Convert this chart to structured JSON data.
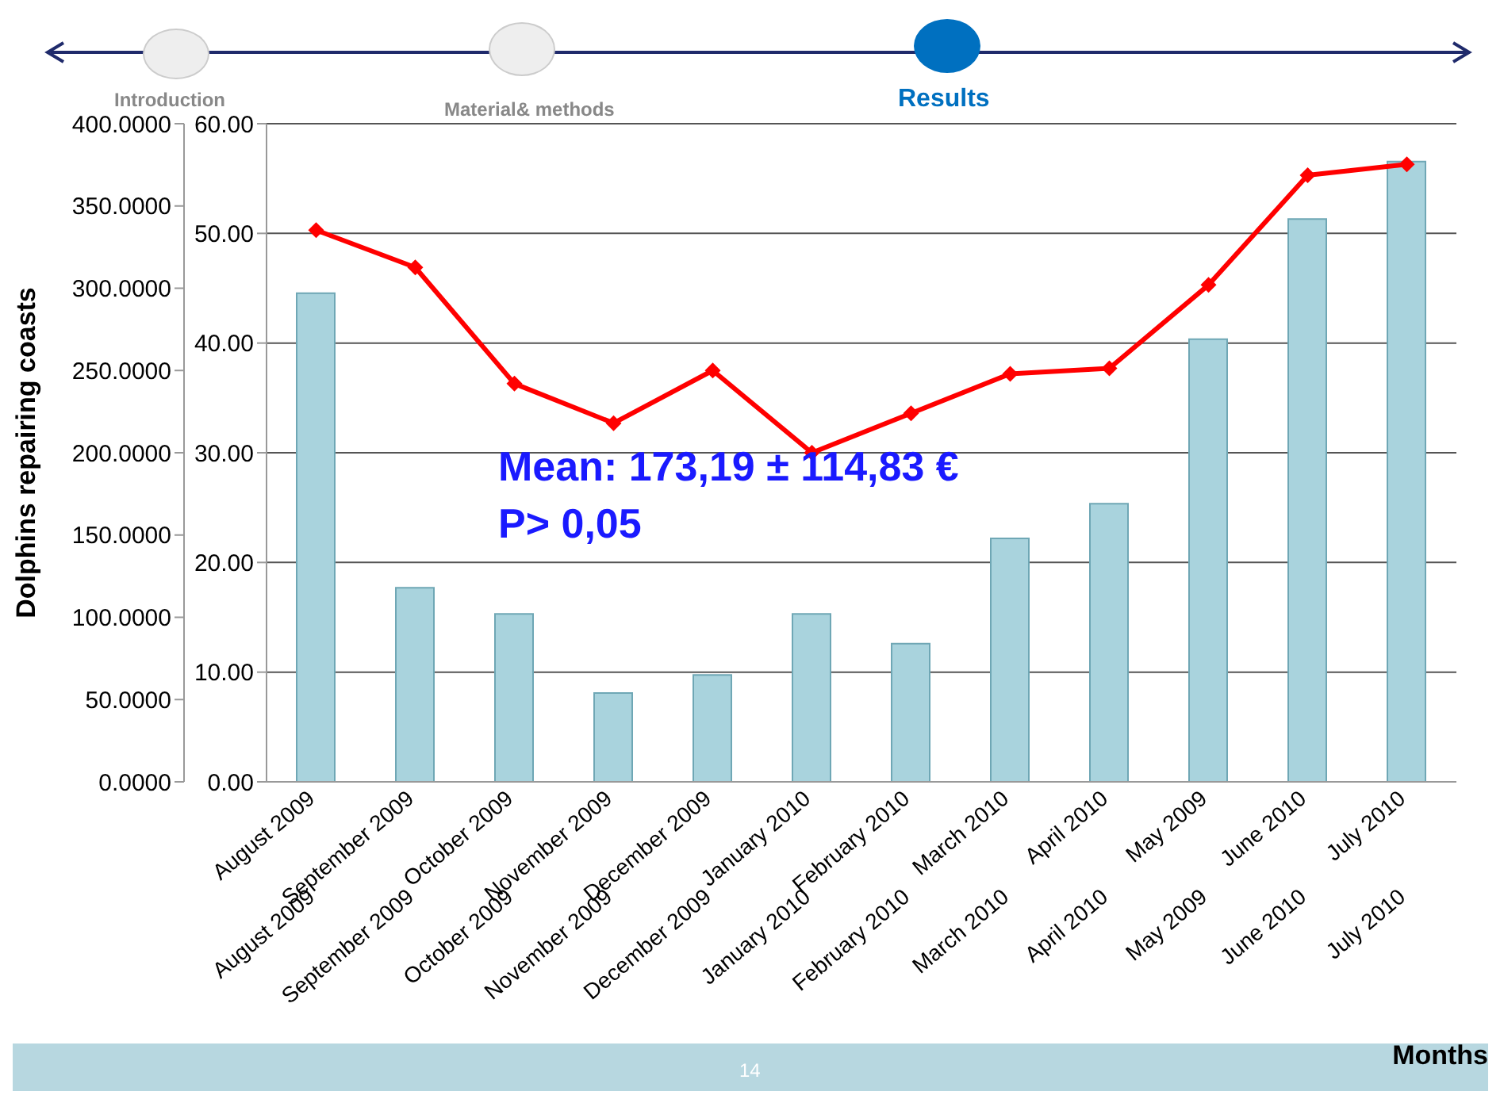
{
  "chart_data": {
    "type": "bar",
    "xlabel": "Months",
    "ylabel": "Dolphins repairing coasts",
    "categories": [
      "August 2009",
      "September 2009",
      "October 2009",
      "November 2009",
      "December 2009",
      "January 2010",
      "February 2010",
      "March 2010",
      "April 2010",
      "May 2009",
      "June 2010",
      "July 2010"
    ],
    "series": [
      {
        "color": "#a9d3dd",
        "values": [
          297,
          118,
          102,
          54,
          65,
          102,
          84,
          148,
          169,
          269,
          342,
          377
        ]
      },
      {
        "type": "line",
        "axis": "y2",
        "color": "#ff0000",
        "marker": "diamond",
        "values": [
          50.3,
          46.9,
          36.3,
          32.7,
          37.5,
          30.0,
          33.6,
          37.2,
          37.7,
          45.3,
          55.3,
          56.3
        ]
      }
    ],
    "ylim": [
      0,
      400
    ],
    "yticks": [
      {
        "value": 0,
        "label": "0.0000"
      },
      {
        "value": 50,
        "label": "50.0000"
      },
      {
        "value": 100,
        "label": "100.0000"
      },
      {
        "value": 150,
        "label": "150.0000"
      },
      {
        "value": 200,
        "label": "200.0000"
      },
      {
        "value": 250,
        "label": "250.0000"
      },
      {
        "value": 300,
        "label": "300.0000"
      },
      {
        "value": 350,
        "label": "350.0000"
      },
      {
        "value": 400,
        "label": "400.0000"
      }
    ],
    "y2lim": [
      0,
      60
    ],
    "y2ticks": [
      {
        "value": 0,
        "label": "0.00"
      },
      {
        "value": 10,
        "label": "10.00"
      },
      {
        "value": 20,
        "label": "20.00"
      },
      {
        "value": 30,
        "label": "30.00"
      },
      {
        "value": 40,
        "label": "40.00"
      },
      {
        "value": 50,
        "label": "50.00"
      },
      {
        "value": 60,
        "label": "60.00"
      }
    ],
    "grid": "y",
    "legend": false,
    "annotations": [
      "Introduction",
      "Material& methods",
      "Results",
      "Mean: 173,19 ± 114,83 €",
      "P> 0,05",
      "14"
    ]
  }
}
